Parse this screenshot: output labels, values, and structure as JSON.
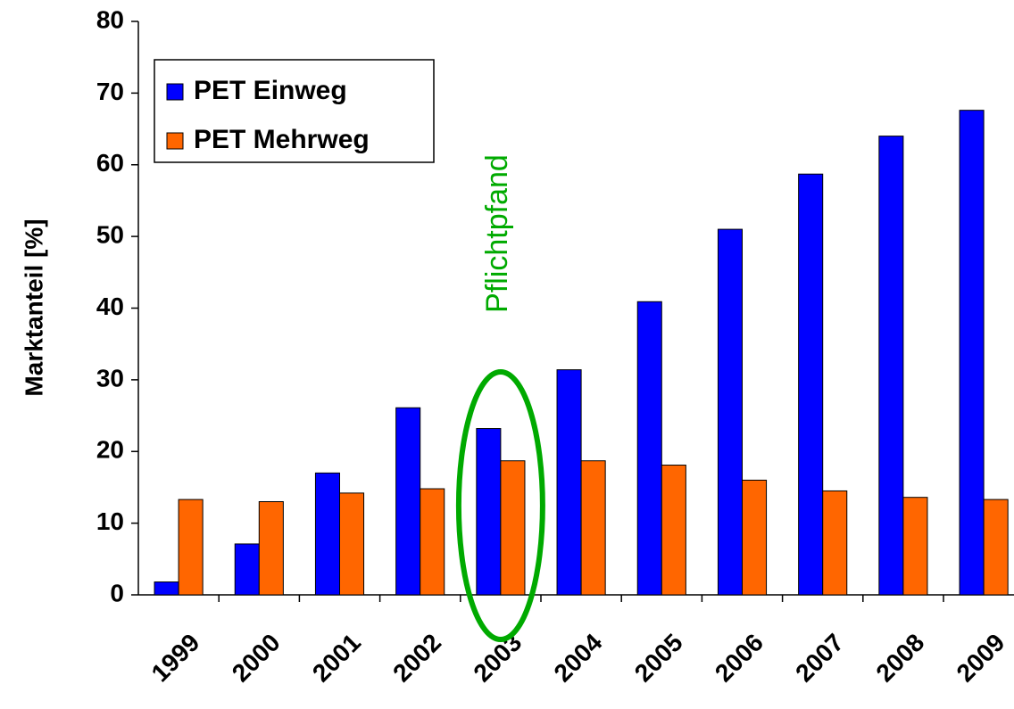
{
  "chart_data": {
    "type": "bar",
    "y_label": "Marktanteil [%]",
    "annotation": "Pflichtpfand",
    "categories": [
      "1999",
      "2000",
      "2001",
      "2002",
      "2003",
      "2004",
      "2005",
      "2006",
      "2007",
      "2008",
      "2009"
    ],
    "series": [
      {
        "name": "PET Einweg",
        "color": "#0000ff",
        "values": [
          1.8,
          7.1,
          17,
          26.1,
          23.2,
          31.4,
          40.9,
          51,
          58.7,
          64,
          67.6
        ]
      },
      {
        "name": "PET Mehrweg",
        "color": "#ff6600",
        "values": [
          13.3,
          13,
          14.2,
          14.8,
          18.7,
          18.7,
          18.1,
          16,
          14.5,
          13.6,
          13.3
        ]
      }
    ],
    "ylim": [
      0,
      80
    ],
    "yticks": [
      0,
      10,
      20,
      30,
      40,
      50,
      60,
      70,
      80
    ],
    "legend": "upper left",
    "annotation_color": "#00aa00"
  }
}
